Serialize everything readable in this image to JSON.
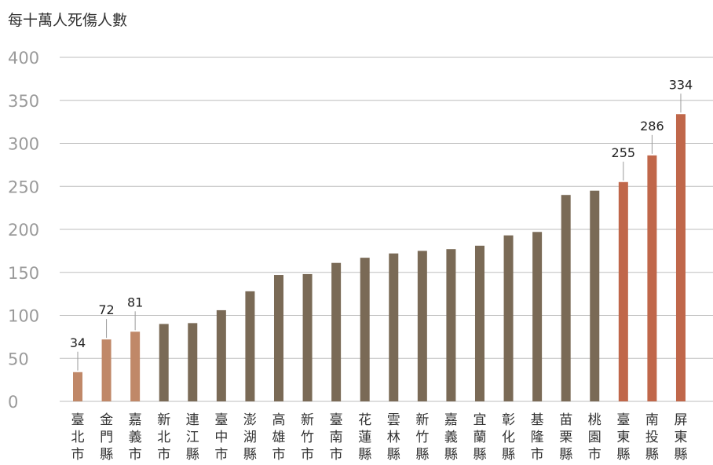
{
  "chart_data": {
    "type": "bar",
    "ylabel": "每十萬人死傷人數",
    "ylim": [
      0,
      400
    ],
    "yticks": [
      0,
      50,
      100,
      150,
      200,
      250,
      300,
      350,
      400
    ],
    "grid": true,
    "categories": [
      "臺北市",
      "金門縣",
      "嘉義市",
      "新北市",
      "連江縣",
      "臺中市",
      "澎湖縣",
      "高雄市",
      "新竹市",
      "臺南市",
      "花蓮縣",
      "雲林縣",
      "新竹縣",
      "嘉義縣",
      "宜蘭縣",
      "彰化縣",
      "基隆市",
      "苗栗縣",
      "桃園市",
      "臺東縣",
      "南投縣",
      "屏東縣"
    ],
    "values": [
      34,
      72,
      81,
      90,
      91,
      106,
      128,
      147,
      148,
      161,
      167,
      172,
      175,
      177,
      181,
      193,
      197,
      240,
      245,
      255,
      286,
      334
    ],
    "data_labels": [
      "34",
      "72",
      "81",
      "",
      "",
      "",
      "",
      "",
      "",
      "",
      "",
      "",
      "",
      "",
      "",
      "",
      "",
      "",
      "",
      "255",
      "286",
      "334"
    ],
    "colors": {
      "low": "#c08868",
      "mid": "#7a6a56",
      "high": "#c0674a",
      "grid": "#bdbdbd"
    },
    "bar_groups": [
      "low",
      "low",
      "low",
      "mid",
      "mid",
      "mid",
      "mid",
      "mid",
      "mid",
      "mid",
      "mid",
      "mid",
      "mid",
      "mid",
      "mid",
      "mid",
      "mid",
      "mid",
      "mid",
      "high",
      "high",
      "high"
    ]
  }
}
